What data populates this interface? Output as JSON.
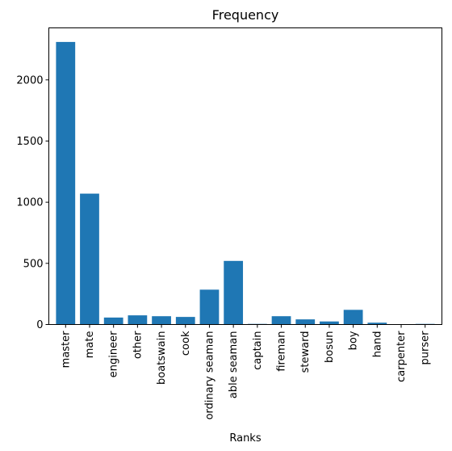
{
  "chart_data": {
    "type": "bar",
    "title": "Frequency",
    "xlabel": "Ranks",
    "ylabel": "",
    "categories": [
      "master",
      "mate",
      "engineer",
      "other",
      "boatswain",
      "cook",
      "ordinary seaman",
      "able seaman",
      "captain",
      "fireman",
      "steward",
      "bosun",
      "boy",
      "hand",
      "carpenter",
      "purser"
    ],
    "values": [
      2310,
      1070,
      57,
      75,
      68,
      62,
      285,
      520,
      5,
      68,
      42,
      25,
      120,
      15,
      3,
      5
    ],
    "ylim": [
      0,
      2425
    ],
    "yticks": [
      0,
      500,
      1000,
      1500,
      2000
    ],
    "color": "#1f77b4",
    "grid": false,
    "legend": "none"
  }
}
